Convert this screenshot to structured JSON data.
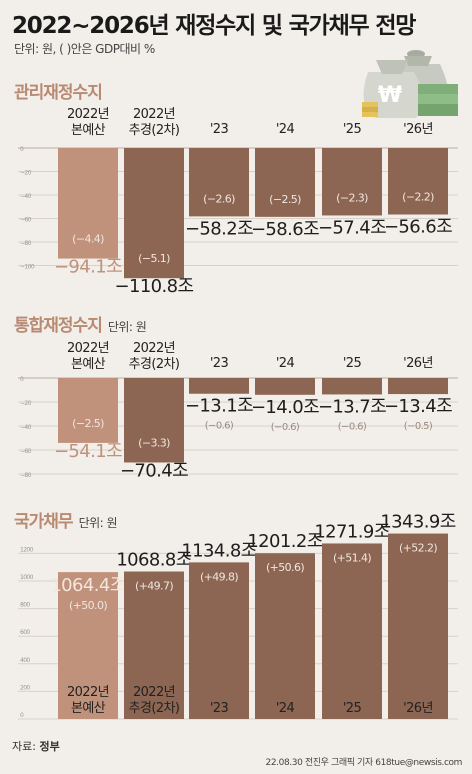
{
  "title": "2022~2026년 재정수지 및 국가채무 전망",
  "unit_note": "단위: 원, ( )안은 GDP대비 %",
  "source_label": "자료:",
  "source_value": "정부",
  "credit": "22.08.30 전진우 그래픽 기자 618tue@newsis.com",
  "colors": {
    "highlight": "#c0927c",
    "bar": "#8c6553",
    "bar_light": "#a57b68",
    "title_accent": "#b98a72"
  },
  "chart_data": [
    {
      "type": "bar",
      "title": "관리재정수지",
      "unit": "",
      "categories": [
        [
          "2022년",
          "본예산"
        ],
        [
          "2022년",
          "추경(2차)"
        ],
        [
          "'23"
        ],
        [
          "'24"
        ],
        [
          "'25"
        ],
        [
          "'26년"
        ]
      ],
      "values": [
        -94.1,
        -110.8,
        -58.2,
        -58.6,
        -57.4,
        -56.6
      ],
      "value_labels": [
        "−94.1조",
        "−110.8조",
        "−58.2조",
        "−58.6조",
        "−57.4조",
        "−56.6조"
      ],
      "gdp_ratio": [
        "(−4.4)",
        "(−5.1)",
        "(−2.6)",
        "(−2.5)",
        "(−2.3)",
        "(−2.2)"
      ],
      "y_ticks": [
        "0",
        "−20",
        "−40",
        "−60",
        "−80",
        "−100"
      ]
    },
    {
      "type": "bar",
      "title": "통합재정수지",
      "unit": "단위: 원",
      "categories": [
        [
          "2022년",
          "본예산"
        ],
        [
          "2022년",
          "추경(2차)"
        ],
        [
          "'23"
        ],
        [
          "'24"
        ],
        [
          "'25"
        ],
        [
          "'26년"
        ]
      ],
      "values": [
        -54.1,
        -70.4,
        -13.1,
        -14.0,
        -13.7,
        -13.4
      ],
      "value_labels": [
        "−54.1조",
        "−70.4조",
        "−13.1조",
        "−14.0조",
        "−13.7조",
        "−13.4조"
      ],
      "gdp_ratio": [
        "(−2.5)",
        "(−3.3)",
        "(−0.6)",
        "(−0.6)",
        "(−0.6)",
        "(−0.5)"
      ],
      "y_ticks": [
        "0",
        "−20",
        "−40",
        "−60",
        "−80"
      ]
    },
    {
      "type": "bar",
      "title": "국가채무",
      "unit": "단위: 원",
      "categories": [
        [
          "2022년",
          "본예산"
        ],
        [
          "2022년",
          "추경(2차)"
        ],
        [
          "'23"
        ],
        [
          "'24"
        ],
        [
          "'25"
        ],
        [
          "'26년"
        ]
      ],
      "values": [
        1064.4,
        1068.8,
        1134.8,
        1201.2,
        1271.9,
        1343.9
      ],
      "value_labels": [
        "1064.4조",
        "1068.8조",
        "1134.8조",
        "1201.2조",
        "1271.9조",
        "1343.9조"
      ],
      "gdp_ratio": [
        "(+50.0)",
        "(+49.7)",
        "(+49.8)",
        "(+50.6)",
        "(+51.4)",
        "(+52.2)"
      ],
      "y_ticks": [
        "1200",
        "1000",
        "800",
        "600",
        "400",
        "200",
        "0"
      ]
    }
  ]
}
